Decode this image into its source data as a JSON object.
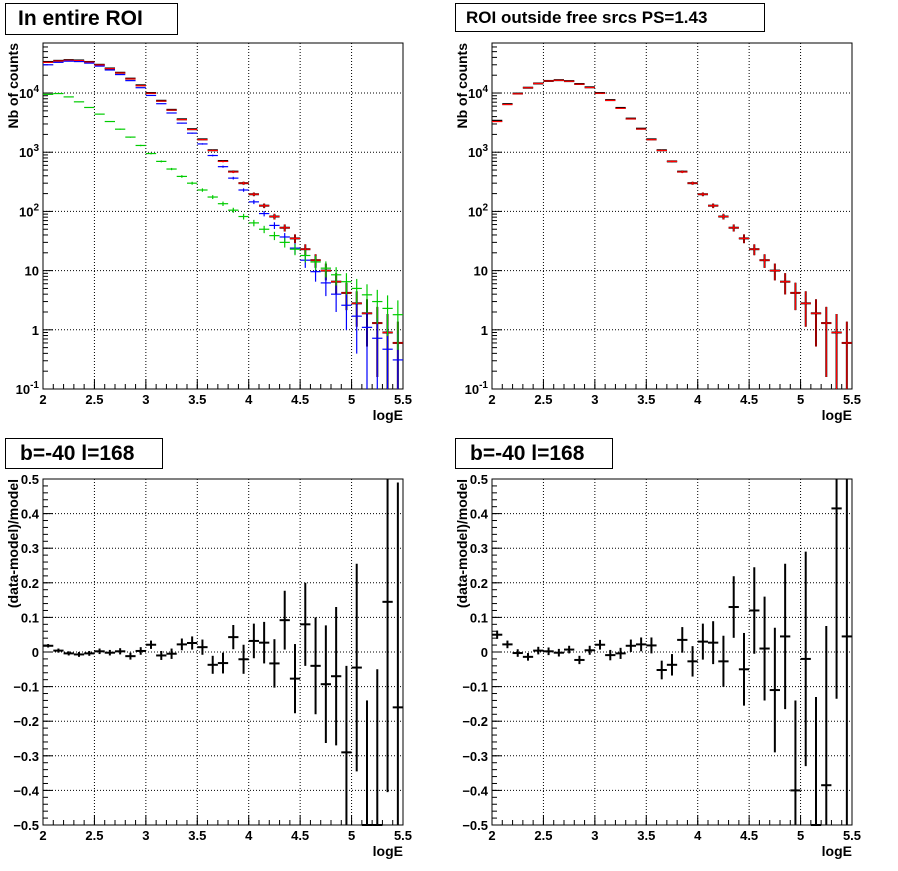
{
  "colors": {
    "data": "#000000",
    "total_model": "#ff0000",
    "model_blue": "#0000ff",
    "model_green": "#00cc00",
    "grid": "#000000"
  },
  "panels": [
    {
      "title": "In entire ROI"
    },
    {
      "title": "ROI outside free srcs PS=1.43"
    },
    {
      "title": "b=-40 l=168"
    },
    {
      "title": "b=-40 l=168"
    }
  ],
  "chart_data": [
    {
      "type": "scatter",
      "title": "In entire ROI",
      "xlabel": "logE",
      "ylabel": "Nb of counts",
      "xlim": [
        2,
        5.5
      ],
      "ylim": [
        0.1,
        70000
      ],
      "yscale": "log",
      "grid": true,
      "x": [
        2.05,
        2.15,
        2.25,
        2.35,
        2.45,
        2.55,
        2.65,
        2.75,
        2.85,
        2.95,
        3.05,
        3.15,
        3.25,
        3.35,
        3.45,
        3.55,
        3.65,
        3.75,
        3.85,
        3.95,
        4.05,
        4.15,
        4.25,
        4.35,
        4.45,
        4.55,
        4.65,
        4.75,
        4.85,
        4.95,
        5.05,
        5.15,
        5.25,
        5.35,
        5.45
      ],
      "series": [
        {
          "role": "data",
          "color": "#000000",
          "values": [
            33500,
            35000,
            36000,
            35500,
            33500,
            30000,
            26000,
            22000,
            17500,
            13500,
            10000,
            7400,
            5200,
            3600,
            2450,
            1650,
            1080,
            710,
            470,
            300,
            195,
            125,
            82,
            53,
            35,
            23,
            15,
            10,
            6.5,
            4.2,
            2.8,
            1.9,
            1.3,
            0.9,
            0.6
          ]
        },
        {
          "role": "model",
          "color": "#ff0000",
          "values": [
            33000,
            34800,
            35700,
            35300,
            33300,
            29800,
            25800,
            21800,
            17300,
            13300,
            9900,
            7300,
            5150,
            3550,
            2420,
            1630,
            1070,
            700,
            465,
            300,
            195,
            125,
            82,
            53,
            35,
            23,
            15,
            10,
            6.5,
            4.2,
            2.8,
            1.9,
            1.3,
            0.9,
            0.6
          ]
        },
        {
          "role": "model",
          "color": "#0000ff",
          "values": [
            30000,
            33000,
            34500,
            34000,
            32000,
            28500,
            24500,
            20500,
            16200,
            12300,
            9100,
            6600,
            4600,
            3100,
            2100,
            1380,
            880,
            570,
            365,
            230,
            145,
            92,
            58,
            37,
            24,
            15,
            9.6,
            6.2,
            4,
            2.6,
            1.7,
            1.1,
            0.72,
            0.47,
            0.31
          ]
        },
        {
          "role": "model",
          "color": "#00cc00",
          "values": [
            9500,
            9800,
            8600,
            7100,
            5700,
            4400,
            3300,
            2450,
            1800,
            1300,
            950,
            700,
            520,
            390,
            300,
            230,
            175,
            135,
            105,
            82,
            64,
            50,
            39,
            30,
            23,
            18,
            14,
            11,
            8.5,
            6.5,
            5,
            3.9,
            3,
            2.3,
            1.8
          ]
        }
      ]
    },
    {
      "type": "scatter",
      "title": "ROI outside free srcs PS=1.43",
      "xlabel": "logE",
      "ylabel": "Nb of counts",
      "xlim": [
        2,
        5.5
      ],
      "ylim": [
        0.1,
        70000
      ],
      "yscale": "log",
      "grid": true,
      "x": [
        2.05,
        2.15,
        2.25,
        2.35,
        2.45,
        2.55,
        2.65,
        2.75,
        2.85,
        2.95,
        3.05,
        3.15,
        3.25,
        3.35,
        3.45,
        3.55,
        3.65,
        3.75,
        3.85,
        3.95,
        4.05,
        4.15,
        4.25,
        4.35,
        4.45,
        4.55,
        4.65,
        4.75,
        4.85,
        4.95,
        5.05,
        5.15,
        5.25,
        5.35,
        5.45
      ],
      "series": [
        {
          "role": "data",
          "color": "#000000",
          "values": [
            3400,
            6500,
            9800,
            12300,
            14500,
            16000,
            16500,
            15900,
            14200,
            12500,
            10000,
            7600,
            5600,
            3700,
            2500,
            1650,
            1080,
            700,
            470,
            300,
            195,
            125,
            82,
            53,
            35,
            23,
            15,
            10,
            6.5,
            4.2,
            2.8,
            1.9,
            1.3,
            0.9,
            0.6
          ]
        },
        {
          "role": "model",
          "color": "#ff0000",
          "values": [
            3300,
            6400,
            9700,
            12300,
            14500,
            16000,
            16400,
            15800,
            14100,
            12400,
            9900,
            7500,
            5500,
            3650,
            2460,
            1630,
            1070,
            700,
            465,
            300,
            195,
            125,
            82,
            53,
            35,
            23,
            15,
            10,
            6.5,
            4.2,
            2.8,
            1.9,
            1.3,
            0.9,
            0.6
          ]
        }
      ]
    },
    {
      "type": "scatter",
      "title": "b=-40 l=168",
      "xlabel": "logE",
      "ylabel": "(data-model)/model",
      "xlim": [
        2,
        5.5
      ],
      "ylim": [
        -0.5,
        0.5
      ],
      "grid": true,
      "x": [
        2.05,
        2.15,
        2.25,
        2.35,
        2.45,
        2.55,
        2.65,
        2.75,
        2.85,
        2.95,
        3.05,
        3.15,
        3.25,
        3.35,
        3.45,
        3.55,
        3.65,
        3.75,
        3.85,
        3.95,
        4.05,
        4.15,
        4.25,
        4.35,
        4.45,
        4.55,
        4.65,
        4.75,
        4.85,
        4.95,
        5.05,
        5.15,
        5.25,
        5.35,
        5.45
      ],
      "series": [
        {
          "role": "data",
          "color": "#000000",
          "values": [
            0.018,
            0.004,
            -0.004,
            -0.007,
            -0.004,
            0.002,
            -0.002,
            0.002,
            -0.012,
            0.003,
            0.021,
            -0.01,
            -0.005,
            0.022,
            0.026,
            0.014,
            -0.037,
            -0.032,
            0.043,
            -0.021,
            0.032,
            0.027,
            -0.033,
            0.092,
            -0.077,
            0.08,
            -0.04,
            -0.093,
            -0.07,
            -0.29,
            -0.045,
            -0.5,
            -0.5,
            0.145,
            -0.16
          ],
          "errors": [
            0.005,
            0.006,
            0.006,
            0.007,
            0.007,
            0.008,
            0.008,
            0.009,
            0.01,
            0.011,
            0.012,
            0.013,
            0.015,
            0.017,
            0.019,
            0.022,
            0.026,
            0.03,
            0.035,
            0.042,
            0.05,
            0.06,
            0.07,
            0.085,
            0.1,
            0.12,
            0.14,
            0.17,
            0.2,
            0.25,
            0.3,
            0.36,
            0.45,
            0.55,
            0.65
          ]
        }
      ]
    },
    {
      "type": "scatter",
      "title": "b=-40 l=168",
      "xlabel": "logE",
      "ylabel": "(data-model)/model",
      "xlim": [
        2,
        5.5
      ],
      "ylim": [
        -0.5,
        0.5
      ],
      "grid": true,
      "x": [
        2.05,
        2.15,
        2.25,
        2.35,
        2.45,
        2.55,
        2.65,
        2.75,
        2.85,
        2.95,
        3.05,
        3.15,
        3.25,
        3.35,
        3.45,
        3.55,
        3.65,
        3.75,
        3.85,
        3.95,
        4.05,
        4.15,
        4.25,
        4.35,
        4.45,
        4.55,
        4.65,
        4.75,
        4.85,
        4.95,
        5.05,
        5.15,
        5.25,
        5.35,
        5.45
      ],
      "series": [
        {
          "role": "data",
          "color": "#000000",
          "values": [
            0.05,
            0.022,
            -0.003,
            -0.014,
            0.004,
            0.002,
            -0.002,
            0.007,
            -0.023,
            0.005,
            0.021,
            -0.009,
            -0.004,
            0.018,
            0.022,
            0.019,
            -0.052,
            -0.037,
            0.035,
            -0.027,
            0.03,
            0.027,
            -0.027,
            0.13,
            -0.05,
            0.12,
            0.01,
            -0.11,
            0.045,
            -0.4,
            -0.02,
            -0.5,
            -0.385,
            0.415,
            0.045
          ],
          "errors": [
            0.012,
            0.011,
            0.011,
            0.011,
            0.011,
            0.011,
            0.011,
            0.011,
            0.012,
            0.013,
            0.014,
            0.015,
            0.016,
            0.018,
            0.02,
            0.023,
            0.027,
            0.031,
            0.037,
            0.044,
            0.052,
            0.062,
            0.074,
            0.089,
            0.105,
            0.125,
            0.15,
            0.18,
            0.21,
            0.26,
            0.31,
            0.37,
            0.46,
            0.55,
            0.65
          ]
        }
      ]
    }
  ]
}
